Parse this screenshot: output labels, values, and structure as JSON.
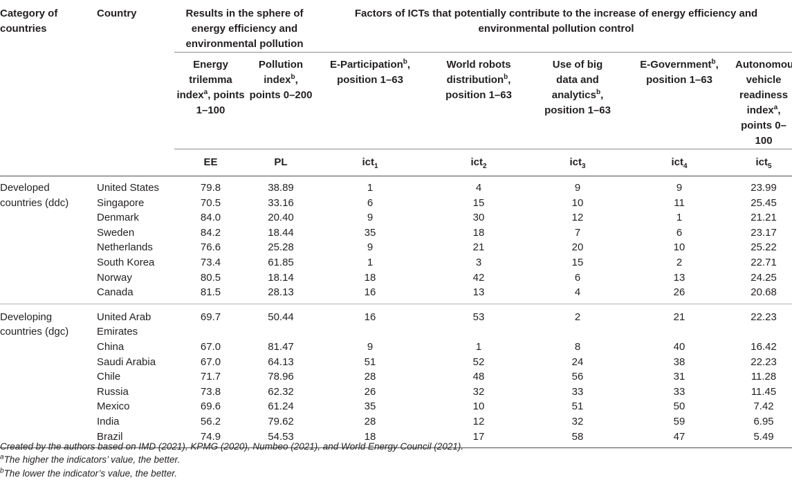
{
  "headers": {
    "category": "Category of countries",
    "country": "Country",
    "results_group": "Results in the sphere of energy efficiency and environmental pollution",
    "factors_group": "Factors of ICTs that potentially contribute to the increase of energy efficiency and environmental pollution control",
    "col_ee": {
      "pre": "Energy trilemma index",
      "sup": "a",
      "post": ", points 1–100"
    },
    "col_pl": {
      "pre": "Pollution index",
      "sup": "b",
      "post": ", points 0–200"
    },
    "col_ict1": {
      "pre": "E-Participation",
      "sup": "b",
      "post": ", position 1–63"
    },
    "col_ict2": {
      "pre": "World robots distribution",
      "sup": "b",
      "post": ", position 1–63"
    },
    "col_ict3": {
      "pre": "Use of big data and analytics",
      "sup": "b",
      "post": ", position 1–63"
    },
    "col_ict4": {
      "pre": "E-Government",
      "sup": "b",
      "post": ", position 1–63"
    },
    "col_ict5": {
      "pre": "Autonomous vehicle readiness index",
      "sup": "a",
      "post": ", points 0–100"
    },
    "codes": {
      "ee": "EE",
      "pl": "PL",
      "ict_base": "ict",
      "ict1_sub": "1",
      "ict2_sub": "2",
      "ict3_sub": "3",
      "ict4_sub": "4",
      "ict5_sub": "5"
    }
  },
  "groups": [
    {
      "category": "Developed countries (ddc)",
      "rows": [
        {
          "country": "United States",
          "ee": "79.8",
          "pl": "38.89",
          "ict1": "1",
          "ict2": "4",
          "ict3": "9",
          "ict4": "9",
          "ict5": "23.99"
        },
        {
          "country": "Singapore",
          "ee": "70.5",
          "pl": "33.16",
          "ict1": "6",
          "ict2": "15",
          "ict3": "10",
          "ict4": "11",
          "ict5": "25.45"
        },
        {
          "country": "Denmark",
          "ee": "84.0",
          "pl": "20.40",
          "ict1": "9",
          "ict2": "30",
          "ict3": "12",
          "ict4": "1",
          "ict5": "21.21"
        },
        {
          "country": "Sweden",
          "ee": "84.2",
          "pl": "18.44",
          "ict1": "35",
          "ict2": "18",
          "ict3": "7",
          "ict4": "6",
          "ict5": "23.17"
        },
        {
          "country": "Netherlands",
          "ee": "76.6",
          "pl": "25.28",
          "ict1": "9",
          "ict2": "21",
          "ict3": "20",
          "ict4": "10",
          "ict5": "25.22"
        },
        {
          "country": "South Korea",
          "ee": "73.4",
          "pl": "61.85",
          "ict1": "1",
          "ict2": "3",
          "ict3": "15",
          "ict4": "2",
          "ict5": "22.71"
        },
        {
          "country": "Norway",
          "ee": "80.5",
          "pl": "18.14",
          "ict1": "18",
          "ict2": "42",
          "ict3": "6",
          "ict4": "13",
          "ict5": "24.25"
        },
        {
          "country": "Canada",
          "ee": "81.5",
          "pl": "28.13",
          "ict1": "16",
          "ict2": "13",
          "ict3": "4",
          "ict4": "26",
          "ict5": "20.68"
        }
      ]
    },
    {
      "category": "Developing countries (dgc)",
      "rows": [
        {
          "country": "United Arab Emirates",
          "ee": "69.7",
          "pl": "50.44",
          "ict1": "16",
          "ict2": "53",
          "ict3": "2",
          "ict4": "21",
          "ict5": "22.23"
        },
        {
          "country": "China",
          "ee": "67.0",
          "pl": "81.47",
          "ict1": "9",
          "ict2": "1",
          "ict3": "8",
          "ict4": "40",
          "ict5": "16.42"
        },
        {
          "country": "Saudi Arabia",
          "ee": "67.0",
          "pl": "64.13",
          "ict1": "51",
          "ict2": "52",
          "ict3": "24",
          "ict4": "38",
          "ict5": "22.23"
        },
        {
          "country": "Chile",
          "ee": "71.7",
          "pl": "78.96",
          "ict1": "28",
          "ict2": "48",
          "ict3": "56",
          "ict4": "31",
          "ict5": "11.28"
        },
        {
          "country": "Russia",
          "ee": "73.8",
          "pl": "62.32",
          "ict1": "26",
          "ict2": "32",
          "ict3": "33",
          "ict4": "33",
          "ict5": "11.45"
        },
        {
          "country": "Mexico",
          "ee": "69.6",
          "pl": "61.24",
          "ict1": "35",
          "ict2": "10",
          "ict3": "51",
          "ict4": "50",
          "ict5": "7.42"
        },
        {
          "country": "India",
          "ee": "56.2",
          "pl": "79.62",
          "ict1": "28",
          "ict2": "12",
          "ict3": "32",
          "ict4": "59",
          "ict5": "6.95"
        },
        {
          "country": "Brazil",
          "ee": "74.9",
          "pl": "54.53",
          "ict1": "18",
          "ict2": "17",
          "ict3": "58",
          "ict4": "47",
          "ict5": "5.49"
        }
      ]
    }
  ],
  "footnotes": {
    "source": "Created by the authors based on IMD (2021), KPMG (2020), Numbeo (2021), and World Energy Council (2021).",
    "note_a": {
      "sup": "a",
      "text": "The higher the indicators’ value, the better."
    },
    "note_b": {
      "sup": "b",
      "text": "The lower the indicator’s value, the better."
    }
  }
}
